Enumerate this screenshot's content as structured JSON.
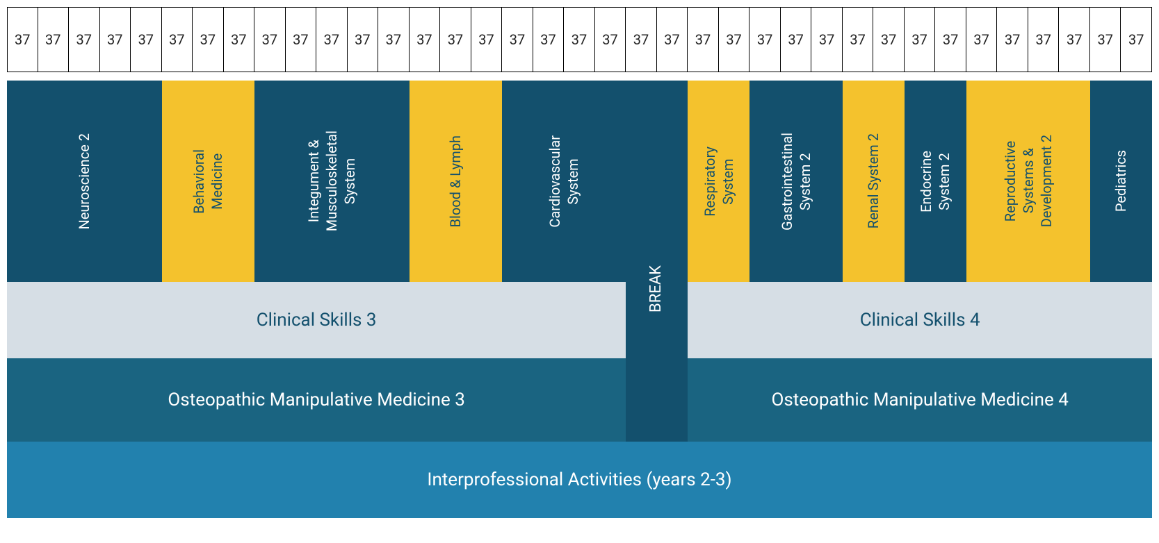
{
  "weeks": 37,
  "colors": {
    "dark_teal": "#13506d",
    "yellow": "#f4c22d",
    "light_gray": "#d6dee5",
    "mid_teal": "#1a6481",
    "light_blue": "#2281ae",
    "white": "#ffffff",
    "text_on_dark": "#ffffff",
    "text_on_yellow": "#13506d",
    "text_on_light": "#13506d"
  },
  "fonts": {
    "block_vertical": 20,
    "block_horizontal": 26,
    "week_number": 20
  },
  "rows": {
    "gap_height": 12,
    "systems_height": 290,
    "break_extra_top": 0,
    "break_total_height": 532,
    "clinical_height": 110,
    "omm_height": 120,
    "inter_height": 110
  },
  "systems": [
    {
      "label": "Neuroscience 2",
      "start": 1,
      "span": 5,
      "color": "dark_teal",
      "text": "white"
    },
    {
      "label": "Behavioral\nMedicine",
      "start": 6,
      "span": 3,
      "color": "yellow",
      "text": "dark_teal"
    },
    {
      "label": "Integument &\nMusculoskeletal\nSystem",
      "start": 9,
      "span": 5,
      "color": "dark_teal",
      "text": "white"
    },
    {
      "label": "Blood & Lymph",
      "start": 14,
      "span": 3,
      "color": "yellow",
      "text": "dark_teal"
    },
    {
      "label": "Cardiovascular\nSystem",
      "start": 17,
      "span": 4,
      "color": "dark_teal",
      "text": "white"
    },
    {
      "label": "Respiratory\nSystem",
      "start": 23,
      "span": 2,
      "color": "yellow",
      "text": "dark_teal"
    },
    {
      "label": "Gastrointestinal\nSystem 2",
      "start": 25,
      "span": 3,
      "color": "dark_teal",
      "text": "white"
    },
    {
      "label": "Renal System 2",
      "start": 28,
      "span": 2,
      "color": "yellow",
      "text": "dark_teal"
    },
    {
      "label": "Endocrine\nSystem 2",
      "start": 30,
      "span": 2,
      "color": "dark_teal",
      "text": "white"
    },
    {
      "label": "Reproductive\nSystems &\nDevelopment 2",
      "start": 32,
      "span": 4,
      "color": "yellow",
      "text": "dark_teal"
    },
    {
      "label": "Pediatrics",
      "start": 36,
      "span": 2,
      "color": "dark_teal",
      "text": "white"
    }
  ],
  "break": {
    "label": "BREAK",
    "start": 21,
    "span": 2,
    "color": "dark_teal",
    "text": "white"
  },
  "clinical": [
    {
      "label": "Clinical Skills 3",
      "start": 1,
      "span": 20,
      "color": "light_gray",
      "text": "dark_teal"
    },
    {
      "label": "Clinical Skills 4",
      "start": 23,
      "span": 15,
      "color": "light_gray",
      "text": "dark_teal"
    }
  ],
  "omm": [
    {
      "label": "Osteopathic Manipulative Medicine 3",
      "start": 1,
      "span": 20,
      "color": "mid_teal",
      "text": "white"
    },
    {
      "label": "Osteopathic Manipulative Medicine 4",
      "start": 23,
      "span": 15,
      "color": "mid_teal",
      "text": "white"
    }
  ],
  "inter": {
    "label": "Interprofessional Activities (years 2-3)",
    "start": 1,
    "span": 37,
    "color": "light_blue",
    "text": "white"
  }
}
